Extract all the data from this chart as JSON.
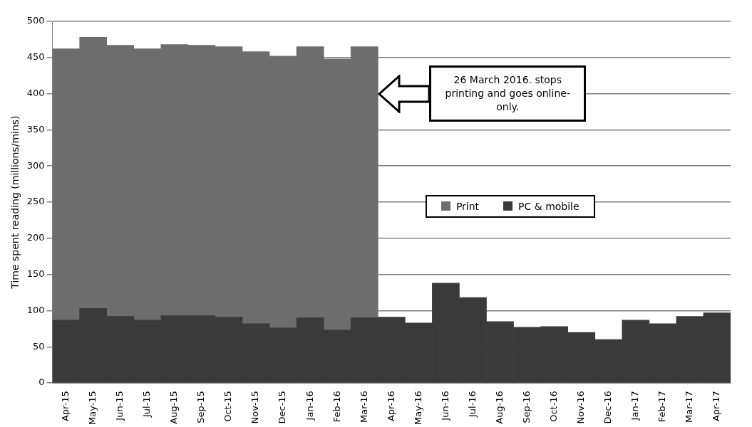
{
  "chart_data": {
    "type": "bar",
    "stacked": true,
    "ylabel": "Time spent reading (millions/mins)",
    "categories": [
      "Apr-15",
      "May-15",
      "Jun-15",
      "Jul-15",
      "Aug-15",
      "Sep-15",
      "Oct-15",
      "Nov-15",
      "Dec-15",
      "Jan-16",
      "Feb-16",
      "Mar-16",
      "Apr-16",
      "May-16",
      "Jun-16",
      "Jul-16",
      "Aug-16",
      "Sep-16",
      "Oct-16",
      "Nov-16",
      "Dec-16",
      "Jan-17",
      "Feb-17",
      "Mar-17",
      "Apr-17"
    ],
    "series": [
      {
        "name": "PC &  mobile",
        "color": "#3a3a3a",
        "values": [
          87,
          103,
          92,
          87,
          93,
          93,
          91,
          82,
          76,
          90,
          73,
          90,
          91,
          83,
          138,
          118,
          85,
          77,
          78,
          70,
          60,
          87,
          82,
          92,
          97
        ]
      },
      {
        "name": "Print",
        "color": "#6d6d6d",
        "values": [
          375,
          375,
          375,
          375,
          375,
          374,
          374,
          376,
          376,
          375,
          375,
          375,
          null,
          null,
          null,
          null,
          null,
          null,
          null,
          null,
          null,
          null,
          null,
          null,
          null
        ]
      }
    ],
    "ylim": [
      0,
      500
    ],
    "yticks": [
      0,
      50,
      100,
      150,
      200,
      250,
      300,
      350,
      400,
      450,
      500
    ],
    "grid": "y",
    "legend": "center",
    "annotations": [
      "26 March 2016. stops printing and goes online-only."
    ]
  }
}
